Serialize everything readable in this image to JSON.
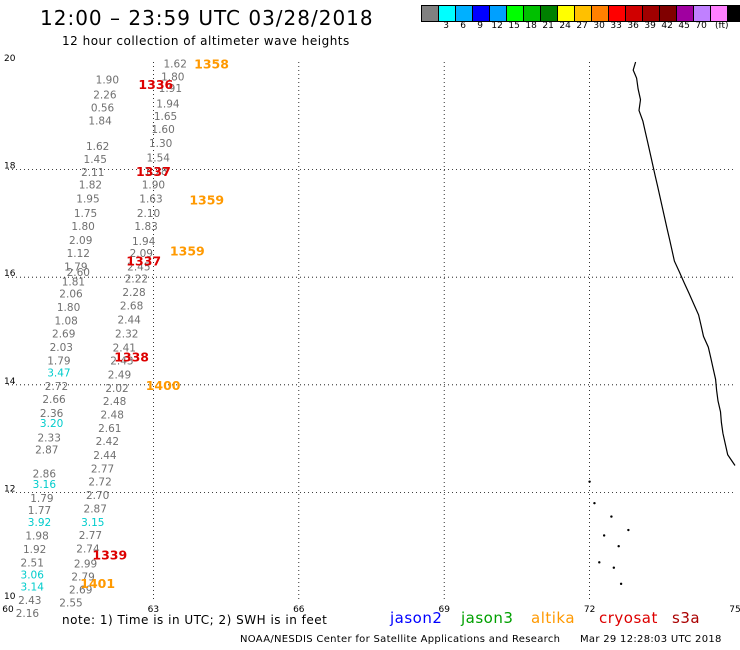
{
  "header": {
    "title": "12:00 – 23:59 UTC 03/28/2018",
    "subtitle": "12 hour collection of altimeter wave heights"
  },
  "legend": {
    "unit": "(ft)",
    "colors": [
      "#808080",
      "#00ffff",
      "#00b0ff",
      "#0000ff",
      "#00a0ff",
      "#00ff00",
      "#00c000",
      "#008000",
      "#ffff00",
      "#ffc000",
      "#ff8000",
      "#ff0000",
      "#d00000",
      "#a00000",
      "#800000",
      "#a000a0",
      "#c080ff",
      "#ff80ff",
      "#000000"
    ],
    "labels": [
      "3",
      "6",
      "9",
      "12",
      "15",
      "18",
      "21",
      "24",
      "27",
      "30",
      "33",
      "36",
      "39",
      "42",
      "45",
      "70"
    ]
  },
  "map": {
    "lon_range": [
      60,
      75
    ],
    "lat_range": [
      10,
      20
    ],
    "x_ticks": [
      60,
      63,
      66,
      69,
      72,
      75
    ],
    "y_ticks": [
      10,
      12,
      14,
      16,
      18,
      20
    ],
    "grid": "dotted"
  },
  "track_labels": [
    {
      "text": "1358",
      "lon": 64.2,
      "lat": 19.88,
      "color": "#ff9900"
    },
    {
      "text": "1336",
      "lon": 63.05,
      "lat": 19.5,
      "color": "#dd0000"
    },
    {
      "text": "1337",
      "lon": 63.0,
      "lat": 17.88,
      "color": "#dd0000"
    },
    {
      "text": "1359",
      "lon": 64.1,
      "lat": 17.35,
      "color": "#ff9900"
    },
    {
      "text": "1359",
      "lon": 63.7,
      "lat": 16.4,
      "color": "#ff9900"
    },
    {
      "text": "1337",
      "lon": 62.8,
      "lat": 16.22,
      "color": "#dd0000"
    },
    {
      "text": "1338",
      "lon": 62.55,
      "lat": 14.43,
      "color": "#dd0000"
    },
    {
      "text": "1400",
      "lon": 63.2,
      "lat": 13.9,
      "color": "#ff9900"
    },
    {
      "text": "1339",
      "lon": 62.1,
      "lat": 10.75,
      "color": "#dd0000"
    },
    {
      "text": "1401",
      "lon": 61.85,
      "lat": 10.22,
      "color": "#ff9900"
    }
  ],
  "points": [
    {
      "text": "1.62",
      "lon": 63.45,
      "lat": 19.9,
      "color": "#707070"
    },
    {
      "text": "1.80",
      "lon": 63.4,
      "lat": 19.66,
      "color": "#707070"
    },
    {
      "text": "1.90",
      "lon": 62.05,
      "lat": 19.6,
      "color": "#707070"
    },
    {
      "text": "1.91",
      "lon": 63.35,
      "lat": 19.44,
      "color": "#707070"
    },
    {
      "text": "2.26",
      "lon": 62.0,
      "lat": 19.32,
      "color": "#707070"
    },
    {
      "text": "1.94",
      "lon": 63.3,
      "lat": 19.15,
      "color": "#707070"
    },
    {
      "text": "0.56",
      "lon": 61.95,
      "lat": 19.08,
      "color": "#707070"
    },
    {
      "text": "1.65",
      "lon": 63.25,
      "lat": 18.92,
      "color": "#707070"
    },
    {
      "text": "1.84",
      "lon": 61.9,
      "lat": 18.84,
      "color": "#707070"
    },
    {
      "text": "1.60",
      "lon": 63.2,
      "lat": 18.68,
      "color": "#707070"
    },
    {
      "text": "1.30",
      "lon": 63.15,
      "lat": 18.42,
      "color": "#707070"
    },
    {
      "text": "1.62",
      "lon": 61.85,
      "lat": 18.36,
      "color": "#707070"
    },
    {
      "text": "1.54",
      "lon": 63.1,
      "lat": 18.15,
      "color": "#707070"
    },
    {
      "text": "1.45",
      "lon": 61.8,
      "lat": 18.12,
      "color": "#707070"
    },
    {
      "text": "2.11",
      "lon": 61.75,
      "lat": 17.88,
      "color": "#707070"
    },
    {
      "text": "1.78",
      "lon": 63.05,
      "lat": 17.9,
      "color": "#707070"
    },
    {
      "text": "1.90",
      "lon": 63.0,
      "lat": 17.65,
      "color": "#707070"
    },
    {
      "text": "1.82",
      "lon": 61.7,
      "lat": 17.65,
      "color": "#707070"
    },
    {
      "text": "1.95",
      "lon": 61.65,
      "lat": 17.39,
      "color": "#707070"
    },
    {
      "text": "1.63",
      "lon": 62.95,
      "lat": 17.39,
      "color": "#707070"
    },
    {
      "text": "1.75",
      "lon": 61.6,
      "lat": 17.12,
      "color": "#707070"
    },
    {
      "text": "2.10",
      "lon": 62.9,
      "lat": 17.12,
      "color": "#707070"
    },
    {
      "text": "1.80",
      "lon": 61.55,
      "lat": 16.88,
      "color": "#707070"
    },
    {
      "text": "1.83",
      "lon": 62.85,
      "lat": 16.88,
      "color": "#707070"
    },
    {
      "text": "2.09",
      "lon": 61.5,
      "lat": 16.62,
      "color": "#707070"
    },
    {
      "text": "1.94",
      "lon": 62.8,
      "lat": 16.6,
      "color": "#707070"
    },
    {
      "text": "1.12",
      "lon": 61.45,
      "lat": 16.38,
      "color": "#707070"
    },
    {
      "text": "2.09",
      "lon": 62.75,
      "lat": 16.38,
      "color": "#707070"
    },
    {
      "text": "1.79",
      "lon": 61.4,
      "lat": 16.12,
      "color": "#707070"
    },
    {
      "text": "2.45",
      "lon": 62.7,
      "lat": 16.12,
      "color": "#707070"
    },
    {
      "text": "2.60",
      "lon": 61.45,
      "lat": 16.02,
      "color": "#707070"
    },
    {
      "text": "2.22",
      "lon": 62.65,
      "lat": 15.9,
      "color": "#707070"
    },
    {
      "text": "1.81",
      "lon": 61.35,
      "lat": 15.85,
      "color": "#707070"
    },
    {
      "text": "2.28",
      "lon": 62.6,
      "lat": 15.65,
      "color": "#707070"
    },
    {
      "text": "2.06",
      "lon": 61.3,
      "lat": 15.62,
      "color": "#707070"
    },
    {
      "text": "2.68",
      "lon": 62.55,
      "lat": 15.4,
      "color": "#707070"
    },
    {
      "text": "1.80",
      "lon": 61.25,
      "lat": 15.37,
      "color": "#707070"
    },
    {
      "text": "2.44",
      "lon": 62.5,
      "lat": 15.14,
      "color": "#707070"
    },
    {
      "text": "1.08",
      "lon": 61.2,
      "lat": 15.12,
      "color": "#707070"
    },
    {
      "text": "2.32",
      "lon": 62.45,
      "lat": 14.88,
      "color": "#707070"
    },
    {
      "text": "2.69",
      "lon": 61.15,
      "lat": 14.88,
      "color": "#707070"
    },
    {
      "text": "2.41",
      "lon": 62.4,
      "lat": 14.62,
      "color": "#707070"
    },
    {
      "text": "2.03",
      "lon": 61.1,
      "lat": 14.63,
      "color": "#707070"
    },
    {
      "text": "2.43",
      "lon": 62.35,
      "lat": 14.38,
      "color": "#707070"
    },
    {
      "text": "1.79",
      "lon": 61.05,
      "lat": 14.38,
      "color": "#707070"
    },
    {
      "text": "3.47",
      "lon": 61.05,
      "lat": 14.15,
      "color": "#00cccc"
    },
    {
      "text": "2.49",
      "lon": 62.3,
      "lat": 14.12,
      "color": "#707070"
    },
    {
      "text": "2.72",
      "lon": 61.0,
      "lat": 13.9,
      "color": "#707070"
    },
    {
      "text": "2.02",
      "lon": 62.25,
      "lat": 13.87,
      "color": "#707070"
    },
    {
      "text": "2.66",
      "lon": 60.95,
      "lat": 13.66,
      "color": "#707070"
    },
    {
      "text": "2.48",
      "lon": 62.2,
      "lat": 13.62,
      "color": "#707070"
    },
    {
      "text": "2.36",
      "lon": 60.9,
      "lat": 13.4,
      "color": "#707070"
    },
    {
      "text": "2.48",
      "lon": 62.15,
      "lat": 13.37,
      "color": "#707070"
    },
    {
      "text": "3.20",
      "lon": 60.9,
      "lat": 13.22,
      "color": "#00cccc"
    },
    {
      "text": "2.61",
      "lon": 62.1,
      "lat": 13.12,
      "color": "#707070"
    },
    {
      "text": "2.33",
      "lon": 60.85,
      "lat": 12.95,
      "color": "#707070"
    },
    {
      "text": "2.42",
      "lon": 62.05,
      "lat": 12.88,
      "color": "#707070"
    },
    {
      "text": "2.87",
      "lon": 60.8,
      "lat": 12.72,
      "color": "#707070"
    },
    {
      "text": "2.44",
      "lon": 62.0,
      "lat": 12.62,
      "color": "#707070"
    },
    {
      "text": "2.77",
      "lon": 61.95,
      "lat": 12.37,
      "color": "#707070"
    },
    {
      "text": "2.86",
      "lon": 60.75,
      "lat": 12.28,
      "color": "#707070"
    },
    {
      "text": "2.72",
      "lon": 61.9,
      "lat": 12.13,
      "color": "#707070"
    },
    {
      "text": "3.16",
      "lon": 60.75,
      "lat": 12.08,
      "color": "#00cccc"
    },
    {
      "text": "2.70",
      "lon": 61.85,
      "lat": 11.88,
      "color": "#707070"
    },
    {
      "text": "1.79",
      "lon": 60.7,
      "lat": 11.82,
      "color": "#707070"
    },
    {
      "text": "2.87",
      "lon": 61.8,
      "lat": 11.63,
      "color": "#707070"
    },
    {
      "text": "1.77",
      "lon": 60.65,
      "lat": 11.6,
      "color": "#707070"
    },
    {
      "text": "3.15",
      "lon": 61.75,
      "lat": 11.38,
      "color": "#00cccc"
    },
    {
      "text": "3.92",
      "lon": 60.65,
      "lat": 11.38,
      "color": "#00cccc"
    },
    {
      "text": "2.77",
      "lon": 61.7,
      "lat": 11.13,
      "color": "#707070"
    },
    {
      "text": "1.98",
      "lon": 60.6,
      "lat": 11.12,
      "color": "#707070"
    },
    {
      "text": "2.74",
      "lon": 61.65,
      "lat": 10.88,
      "color": "#707070"
    },
    {
      "text": "1.92",
      "lon": 60.55,
      "lat": 10.87,
      "color": "#707070"
    },
    {
      "text": "2.51",
      "lon": 60.5,
      "lat": 10.62,
      "color": "#707070"
    },
    {
      "text": "2.99",
      "lon": 61.6,
      "lat": 10.6,
      "color": "#707070"
    },
    {
      "text": "3.06",
      "lon": 60.5,
      "lat": 10.4,
      "color": "#00cccc"
    },
    {
      "text": "2.79",
      "lon": 61.55,
      "lat": 10.36,
      "color": "#707070"
    },
    {
      "text": "3.14",
      "lon": 60.5,
      "lat": 10.18,
      "color": "#00cccc"
    },
    {
      "text": "2.69",
      "lon": 61.5,
      "lat": 10.12,
      "color": "#707070"
    },
    {
      "text": "2.43",
      "lon": 60.45,
      "lat": 9.93,
      "color": "#707070"
    },
    {
      "text": "2.55",
      "lon": 61.3,
      "lat": 9.88,
      "color": "#707070"
    },
    {
      "text": "2.16",
      "lon": 60.4,
      "lat": 9.68,
      "color": "#707070"
    }
  ],
  "footer": {
    "note": "note: 1) Time is in UTC; 2) SWH is in feet",
    "satellites": [
      {
        "name": "jason2",
        "color": "#0000ff"
      },
      {
        "name": "jason3",
        "color": "#00a000"
      },
      {
        "name": "altika",
        "color": "#ff9900"
      },
      {
        "name": "cryosat",
        "color": "#dd0000"
      },
      {
        "name": "s3a",
        "color": "#aa0000"
      }
    ],
    "credit": "NOAA/NESDIS Center for Satellite Applications and Research",
    "timestamp": "Mar 29 12:28:03 UTC 2018"
  }
}
